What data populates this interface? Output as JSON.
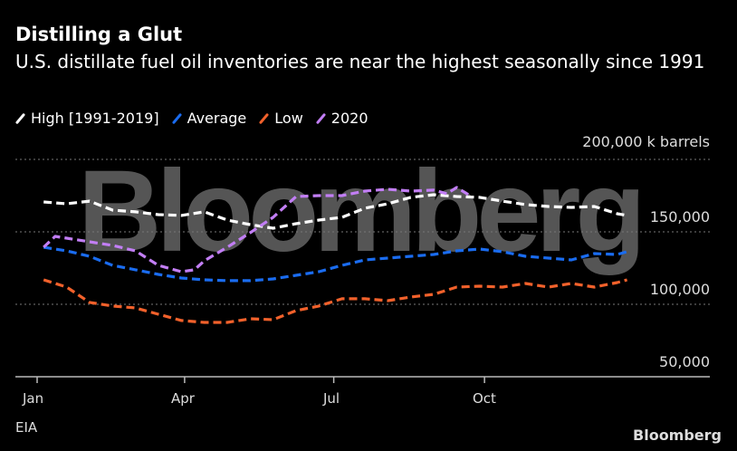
{
  "header": {
    "title": "Distilling a Glut",
    "subtitle": "U.S. distillate fuel oil inventories are near the highest seasonally since 1991"
  },
  "footer": {
    "source": "EIA",
    "logo": "Bloomberg"
  },
  "watermark": "Bloomberg",
  "chart_data": {
    "type": "line",
    "title": "Distilling a Glut",
    "ylabel": "k barrels",
    "unit_label": "200,000 k barrels",
    "ylim": [
      50000,
      200000
    ],
    "y_ticks": [
      "50,000",
      "100,000",
      "150,000",
      "200,000"
    ],
    "y_tick_values": [
      50000,
      100000,
      150000,
      200000
    ],
    "x_ticks": [
      "Jan",
      "Apr",
      "Jul",
      "Oct"
    ],
    "x_tick_dates": [
      "Jan 1",
      "Apr 1",
      "Jul 1",
      "Oct 1"
    ],
    "grid": true,
    "legend_position": "top-left",
    "line_style": "dashed",
    "series": [
      {
        "name": "High [1991-2019]",
        "color": "#ffffff",
        "x": [
          "Jan 5",
          "Jan 19",
          "Feb 2",
          "Feb 16",
          "Mar 2",
          "Mar 16",
          "Mar 30",
          "Apr 13",
          "Apr 27",
          "May 11",
          "May 25",
          "Jun 8",
          "Jun 22",
          "Jul 6",
          "Jul 20",
          "Aug 3",
          "Aug 17",
          "Aug 31",
          "Sep 14",
          "Sep 28",
          "Oct 12",
          "Oct 26",
          "Nov 9",
          "Nov 23",
          "Dec 7",
          "Dec 21",
          "Dec 27"
        ],
        "values": [
          170600,
          169400,
          171200,
          165000,
          163800,
          161900,
          161300,
          163800,
          158100,
          155000,
          152500,
          155600,
          158100,
          160000,
          166300,
          169400,
          173800,
          175600,
          174400,
          173800,
          171200,
          168800,
          167500,
          166900,
          167500,
          162500,
          161300
        ]
      },
      {
        "name": "Average",
        "color": "#1a6cf0",
        "x": [
          "Jan 5",
          "Jan 19",
          "Feb 2",
          "Feb 16",
          "Mar 2",
          "Mar 16",
          "Mar 30",
          "Apr 13",
          "Apr 27",
          "May 11",
          "May 25",
          "Jun 8",
          "Jun 22",
          "Jul 6",
          "Jul 20",
          "Aug 3",
          "Aug 17",
          "Aug 31",
          "Sep 14",
          "Sep 28",
          "Oct 12",
          "Oct 26",
          "Nov 9",
          "Nov 23",
          "Dec 7",
          "Dec 21",
          "Dec 27"
        ],
        "values": [
          139400,
          136900,
          133100,
          126900,
          123800,
          120600,
          118100,
          116900,
          116300,
          116300,
          117500,
          120000,
          122500,
          126900,
          130600,
          131900,
          133100,
          134400,
          136900,
          138100,
          136300,
          133100,
          131900,
          130600,
          135000,
          134400,
          136300
        ]
      },
      {
        "name": "Low",
        "color": "#f2612b",
        "x": [
          "Jan 5",
          "Jan 19",
          "Feb 2",
          "Feb 16",
          "Mar 2",
          "Mar 16",
          "Mar 30",
          "Apr 13",
          "Apr 27",
          "May 11",
          "May 25",
          "Jun 8",
          "Jun 22",
          "Jul 6",
          "Jul 20",
          "Aug 3",
          "Aug 17",
          "Aug 31",
          "Sep 14",
          "Sep 28",
          "Oct 12",
          "Oct 26",
          "Nov 9",
          "Nov 23",
          "Dec 7",
          "Dec 21",
          "Dec 27"
        ],
        "values": [
          116900,
          111900,
          101300,
          98800,
          97500,
          93100,
          88800,
          87500,
          87500,
          90000,
          89400,
          95600,
          98800,
          103800,
          103800,
          102500,
          105000,
          106900,
          111900,
          112500,
          111900,
          114400,
          111900,
          114400,
          111900,
          115000,
          116900
        ]
      },
      {
        "name": "2020",
        "color": "#c27ef5",
        "x": [
          "Jan 5",
          "Jan 12",
          "Jan 19",
          "Feb 2",
          "Feb 16",
          "Mar 2",
          "Mar 16",
          "Mar 30",
          "Apr 7",
          "Apr 13",
          "Apr 27",
          "May 11",
          "May 25",
          "Jun 8",
          "Jun 22",
          "Jul 6",
          "Jul 20",
          "Aug 3",
          "Aug 17",
          "Aug 31",
          "Sep 8",
          "Sep 14",
          "Sep 23"
        ],
        "values": [
          139400,
          146900,
          145600,
          143100,
          140600,
          136900,
          126900,
          122500,
          123800,
          130000,
          139400,
          149400,
          160000,
          174400,
          175000,
          175000,
          178100,
          179400,
          178100,
          178800,
          176300,
          180600,
          174400
        ]
      }
    ]
  }
}
